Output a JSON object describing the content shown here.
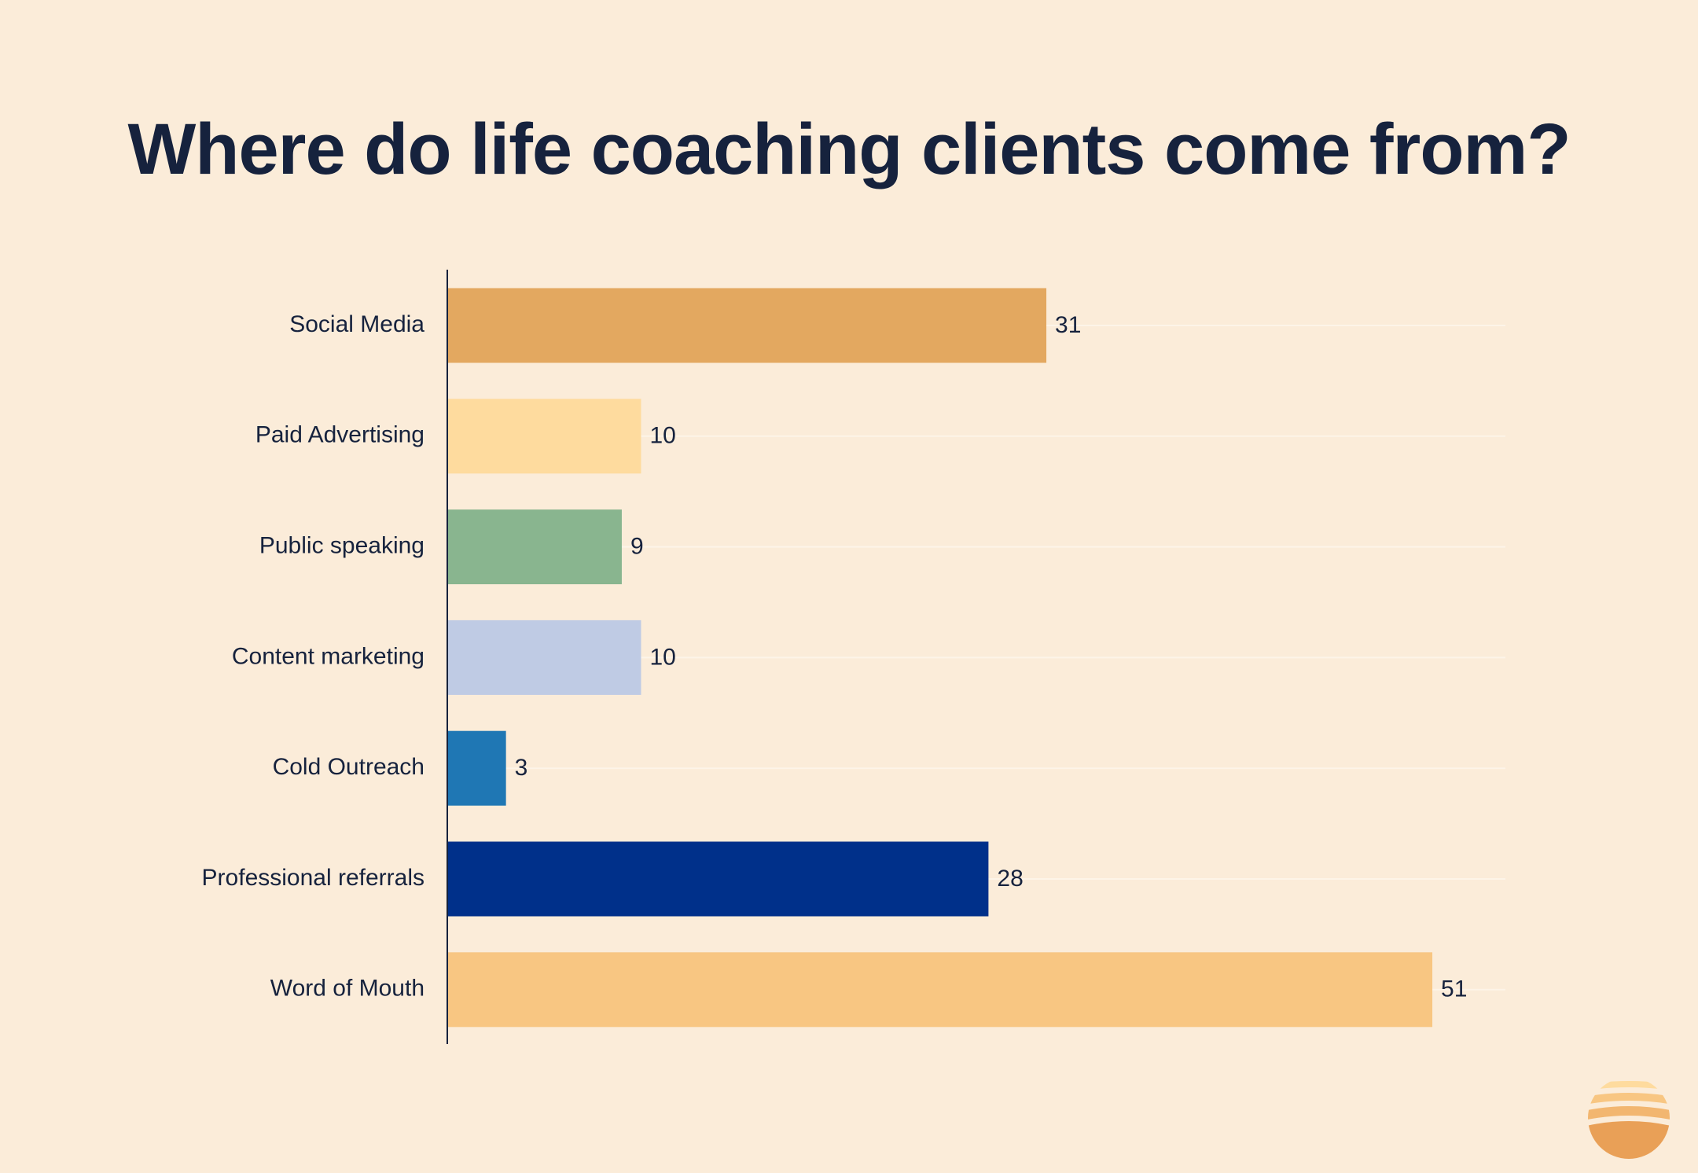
{
  "chart_data": {
    "type": "bar",
    "orientation": "horizontal",
    "title": "Where do life coaching clients come from?",
    "xlabel": "",
    "ylabel": "",
    "xlim": [
      0,
      55
    ],
    "grid": true,
    "legend": "none",
    "categories": [
      "Social Media",
      "Paid Advertising",
      "Public speaking",
      "Content marketing",
      "Cold Outreach",
      "Professional referrals",
      "Word of Mouth"
    ],
    "values": [
      31,
      10,
      9,
      10,
      3,
      28,
      51
    ],
    "colors": [
      "#e3a860",
      "#fedb9e",
      "#89b58f",
      "#bfcbe4",
      "#1f77b4",
      "#00308a",
      "#f8c682"
    ]
  },
  "colors": {
    "background": "#fbecd9",
    "text": "#16223d",
    "axis": "#16223d",
    "gridline": "#fdf4e8"
  },
  "logo": {
    "icon": "sun-waves-logo-icon",
    "colors": [
      "#fedb9e",
      "#f8c682",
      "#e9a057"
    ]
  }
}
